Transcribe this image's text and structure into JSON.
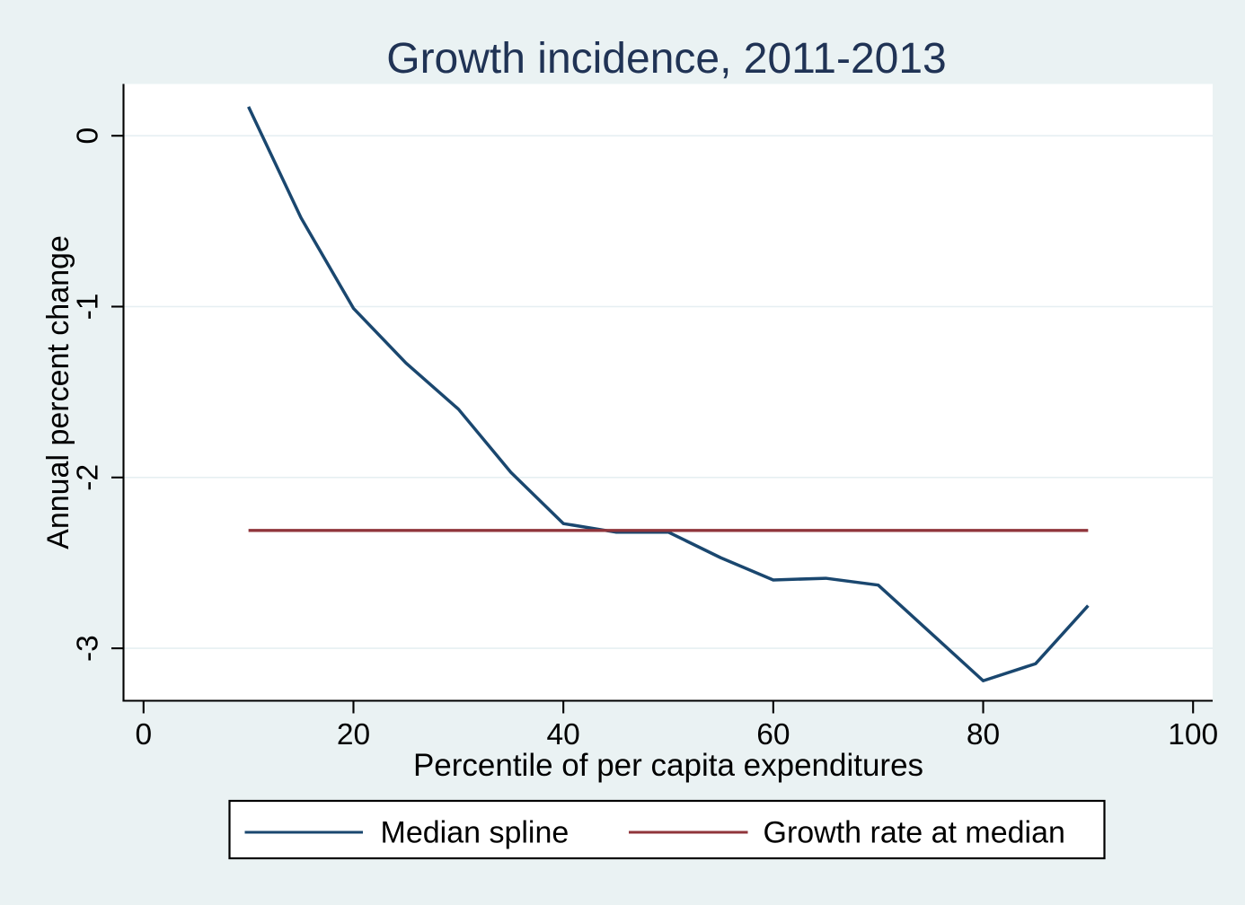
{
  "chart_data": {
    "type": "line",
    "title": "Growth incidence, 2011-2013",
    "xlabel": "Percentile of per capita expenditures",
    "ylabel": "Annual percent change",
    "x_ticks": [
      0,
      20,
      40,
      60,
      80,
      100
    ],
    "y_ticks": [
      0,
      -1,
      -2,
      -3
    ],
    "xlim": [
      -1.9,
      101.9
    ],
    "ylim": [
      -3.31,
      0.3
    ],
    "grid": "horizontal-only",
    "legend_position": "bottom-center",
    "series": [
      {
        "name": "Median spline",
        "color": "#1A476F",
        "x": [
          10,
          15,
          20,
          25,
          30,
          35,
          40,
          45,
          50,
          55,
          60,
          65,
          70,
          75,
          80,
          85,
          90
        ],
        "y": [
          0.17,
          -0.48,
          -1.01,
          -1.33,
          -1.6,
          -1.97,
          -2.27,
          -2.32,
          -2.32,
          -2.47,
          -2.6,
          -2.59,
          -2.63,
          -2.91,
          -3.19,
          -3.09,
          -2.75
        ]
      },
      {
        "name": "Growth rate at median",
        "color": "#90353B",
        "x": [
          10,
          90
        ],
        "y": [
          -2.31,
          -2.31
        ]
      }
    ],
    "colors": {
      "background": "#EAF2F3",
      "plot_background": "#FFFFFF",
      "gridline": "#E6EFF2",
      "axis": "#000000",
      "title": "#203355",
      "text": "#000000"
    }
  }
}
